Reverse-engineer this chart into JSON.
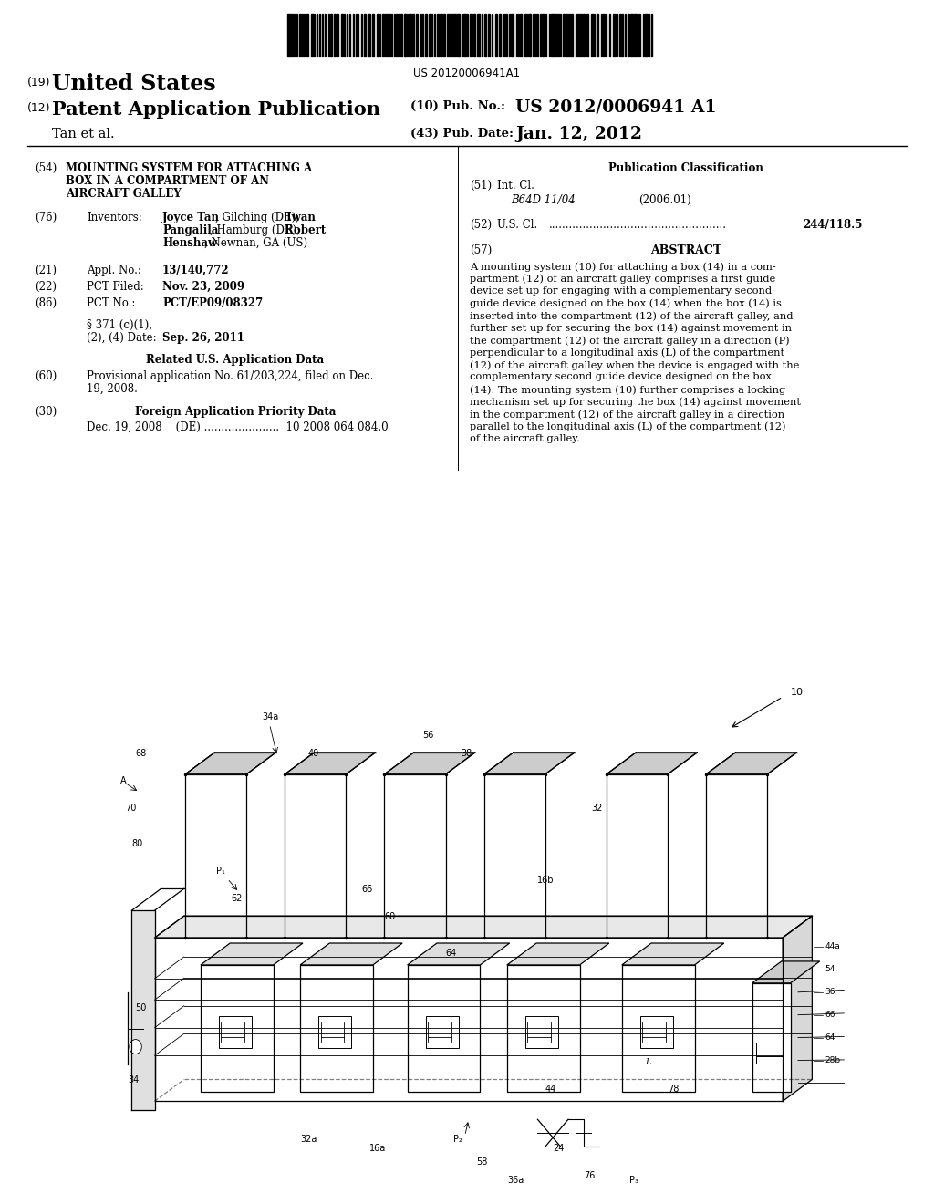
{
  "background_color": "#ffffff",
  "barcode_text": "US 20120006941A1",
  "header": {
    "country_prefix": "(19)",
    "country": "United States",
    "type_prefix": "(12)",
    "type": "Patent Application Publication",
    "pub_no_prefix": "(10) Pub. No.:",
    "pub_no": "US 2012/0006941 A1",
    "authors": "Tan et al.",
    "pub_date_prefix": "(43) Pub. Date:",
    "pub_date": "Jan. 12, 2012"
  },
  "left_column": {
    "title_num": "(54)",
    "title_line1": "MOUNTING SYSTEM FOR ATTACHING A",
    "title_line2": "BOX IN A COMPARTMENT OF AN",
    "title_line3": "AIRCRAFT GALLEY",
    "inventors_num": "(76)",
    "inventors_label": "Inventors:",
    "inv_line1": "Joyce Tan, Gilching (DE); Iwan",
    "inv_line2": "Pangalila, Hamburg (DE); Robert",
    "inv_line3": "Henshaw, Newnan, GA (US)",
    "appl_num": "(21)",
    "appl_label": "Appl. No.:",
    "appl_value": "13/140,772",
    "pct_filed_num": "(22)",
    "pct_filed_label": "PCT Filed:",
    "pct_filed_value": "Nov. 23, 2009",
    "pct_no_num": "(86)",
    "pct_no_label": "PCT No.:",
    "pct_no_value": "PCT/EP09/08327",
    "s371_line1": "§ 371 (c)(1),",
    "s371_line2": "(2), (4) Date:",
    "s371_value": "Sep. 26, 2011",
    "related_header": "Related U.S. Application Data",
    "related_num": "(60)",
    "related_line1": "Provisional application No. 61/203,224, filed on Dec.",
    "related_line2": "19, 2008.",
    "foreign_num": "(30)",
    "foreign_header": "Foreign Application Priority Data",
    "foreign_text": "Dec. 19, 2008    (DE) ......................  10 2008 064 084.0"
  },
  "right_column": {
    "pub_class_header": "Publication Classification",
    "intl_cl_num": "(51)",
    "intl_cl_label": "Int. Cl.",
    "intl_cl_value": "B64D 11/04",
    "intl_cl_year": "(2006.01)",
    "us_cl_num": "(52)",
    "us_cl_label": "U.S. Cl.",
    "us_cl_dots": "....................................................",
    "us_cl_value": "244/118.5",
    "abstract_num": "(57)",
    "abstract_header": "ABSTRACT",
    "abs_lines": [
      "A mounting system (10) for attaching a box (14) in a com-",
      "partment (12) of an aircraft galley comprises a first guide",
      "device set up for engaging with a complementary second",
      "guide device designed on the box (14) when the box (14) is",
      "inserted into the compartment (12) of the aircraft galley, and",
      "further set up for securing the box (14) against movement in",
      "the compartment (12) of the aircraft galley in a direction (P)",
      "perpendicular to a longitudinal axis (L) of the compartment",
      "(12) of the aircraft galley when the device is engaged with the",
      "complementary second guide device designed on the box",
      "(14). The mounting system (10) further comprises a locking",
      "mechanism set up for securing the box (14) against movement",
      "in the compartment (12) of the aircraft galley in a direction",
      "parallel to the longitudinal axis (L) of the compartment (12)",
      "of the aircraft galley."
    ]
  }
}
